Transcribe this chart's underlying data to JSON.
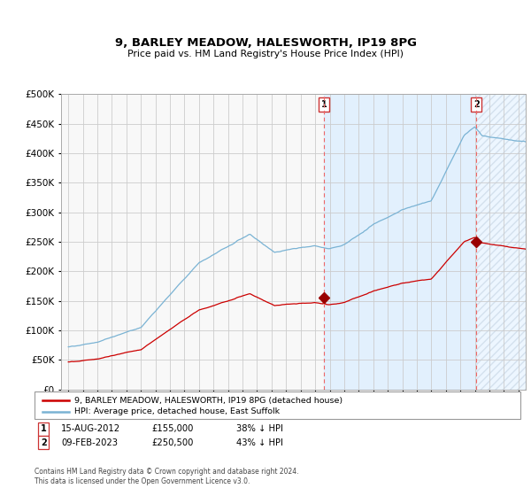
{
  "title": "9, BARLEY MEADOW, HALESWORTH, IP19 8PG",
  "subtitle": "Price paid vs. HM Land Registry's House Price Index (HPI)",
  "legend_line1": "9, BARLEY MEADOW, HALESWORTH, IP19 8PG (detached house)",
  "legend_line2": "HPI: Average price, detached house, East Suffolk",
  "annotation1_label": "1",
  "annotation1_date": "15-AUG-2012",
  "annotation1_price": "£155,000",
  "annotation1_hpi": "38% ↓ HPI",
  "annotation2_label": "2",
  "annotation2_date": "09-FEB-2023",
  "annotation2_price": "£250,500",
  "annotation2_hpi": "43% ↓ HPI",
  "footer": "Contains HM Land Registry data © Crown copyright and database right 2024.\nThis data is licensed under the Open Government Licence v3.0.",
  "hpi_color": "#7ab3d4",
  "price_color": "#cc0000",
  "plot_bg_color": "#f0f0f0",
  "span_bg_color": "#ddeeff",
  "marker_color": "#990000",
  "vline_color": "#ee4444",
  "x_start_year": 1995,
  "x_end_year": 2026,
  "ylim_max": 500000,
  "sale1_year": 2012.62,
  "sale1_value": 155000,
  "sale2_year": 2023.1,
  "sale2_value": 250500
}
